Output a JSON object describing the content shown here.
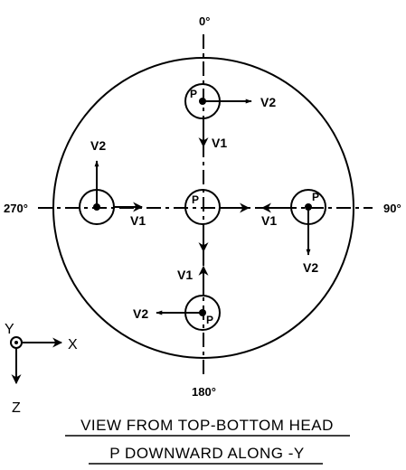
{
  "angles": {
    "top": "0°",
    "right": "90°",
    "bottom": "180°",
    "left": "270°"
  },
  "nozzles": {
    "top": {
      "point": "P",
      "label_h": "V2",
      "label_v": "V1"
    },
    "left": {
      "point": "",
      "label_h": "V1",
      "label_v": "V2"
    },
    "center": {
      "point": "P"
    },
    "right": {
      "point": "P",
      "label_h": "V1",
      "label_v": "V2"
    },
    "bottom": {
      "point": "P",
      "label_h": "V2",
      "label_v": "V1"
    }
  },
  "axes": {
    "y": "Y",
    "x": "X",
    "z": "Z"
  },
  "caption": {
    "line1": "VIEW FROM TOP-BOTTOM HEAD",
    "line2": "P DOWNWARD ALONG -Y"
  }
}
